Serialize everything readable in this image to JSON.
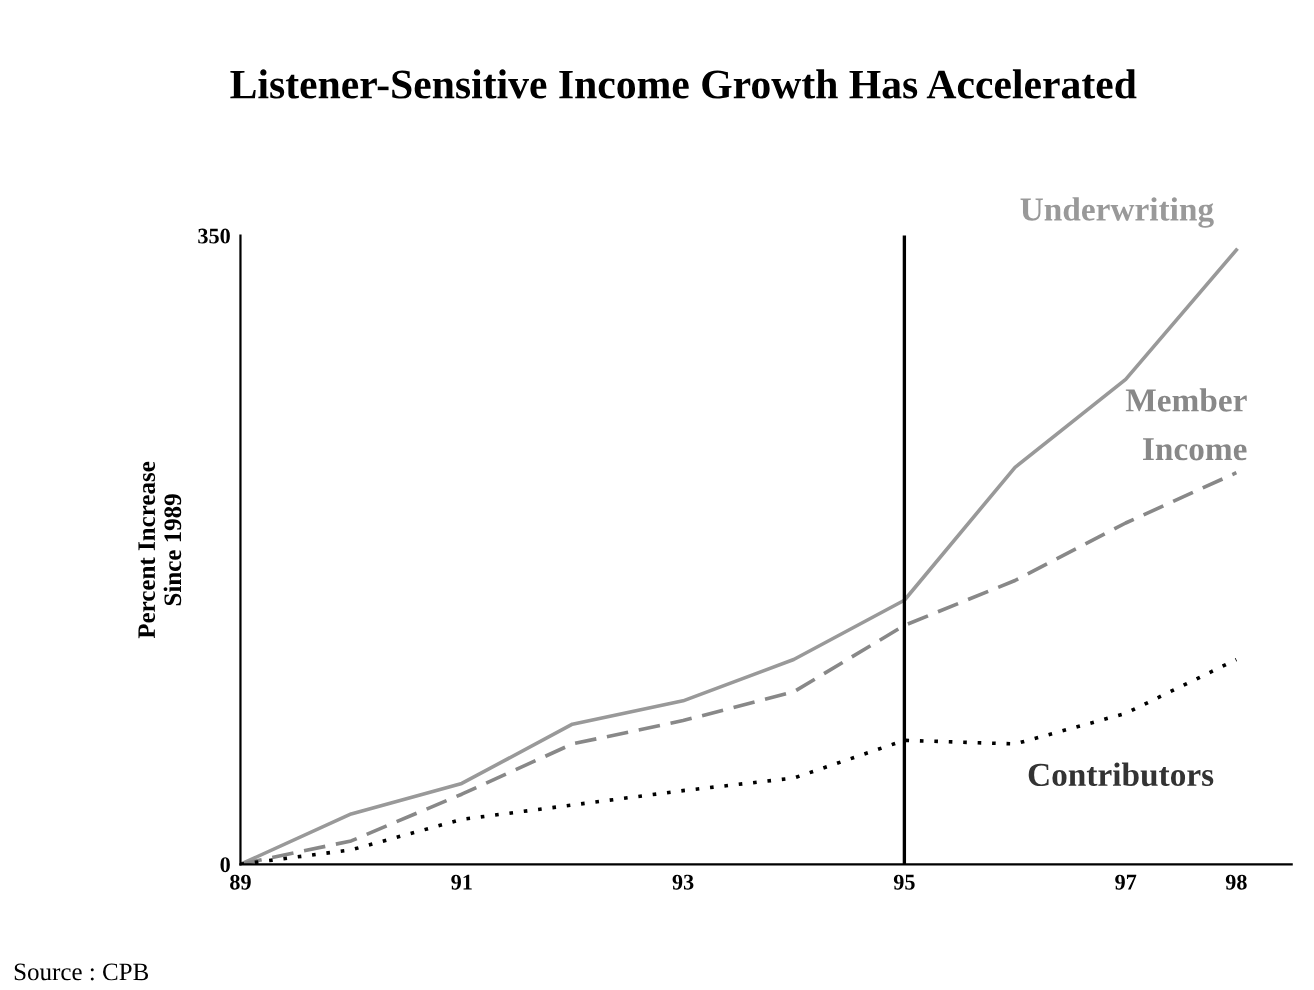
{
  "chart_data": {
    "type": "line",
    "title": "Listener-Sensitive Income Growth Has Accelerated",
    "ylabel": "Percent Increase\nSince 1989",
    "x": [
      89,
      90,
      91,
      92,
      93,
      94,
      95,
      96,
      97,
      98
    ],
    "series": [
      {
        "name": "Underwriting",
        "color": "#999999",
        "line_style": "solid",
        "values": [
          0,
          28,
          45,
          78,
          91,
          114,
          147,
          221,
          270,
          342
        ]
      },
      {
        "name": "Member Income",
        "color": "#888888",
        "line_style": "dashed",
        "values": [
          0,
          13,
          39,
          67,
          80,
          96,
          133,
          158,
          190,
          218
        ]
      },
      {
        "name": "Contributors",
        "color": "#000000",
        "line_style": "dotted",
        "values": [
          0,
          8,
          25,
          33,
          41,
          48,
          69,
          67,
          84,
          114
        ]
      }
    ],
    "xlim": [
      89,
      98.5
    ],
    "xticks": [
      89,
      91,
      93,
      95,
      97,
      98
    ],
    "ylim": [
      0,
      350
    ],
    "yticks": [
      0,
      350
    ],
    "ref_lines": [
      {
        "axis": "x",
        "value": 95,
        "color": "#000000"
      }
    ],
    "grid": false,
    "legend": false,
    "marker": "none",
    "annotations": [
      "Source : CPB"
    ]
  }
}
